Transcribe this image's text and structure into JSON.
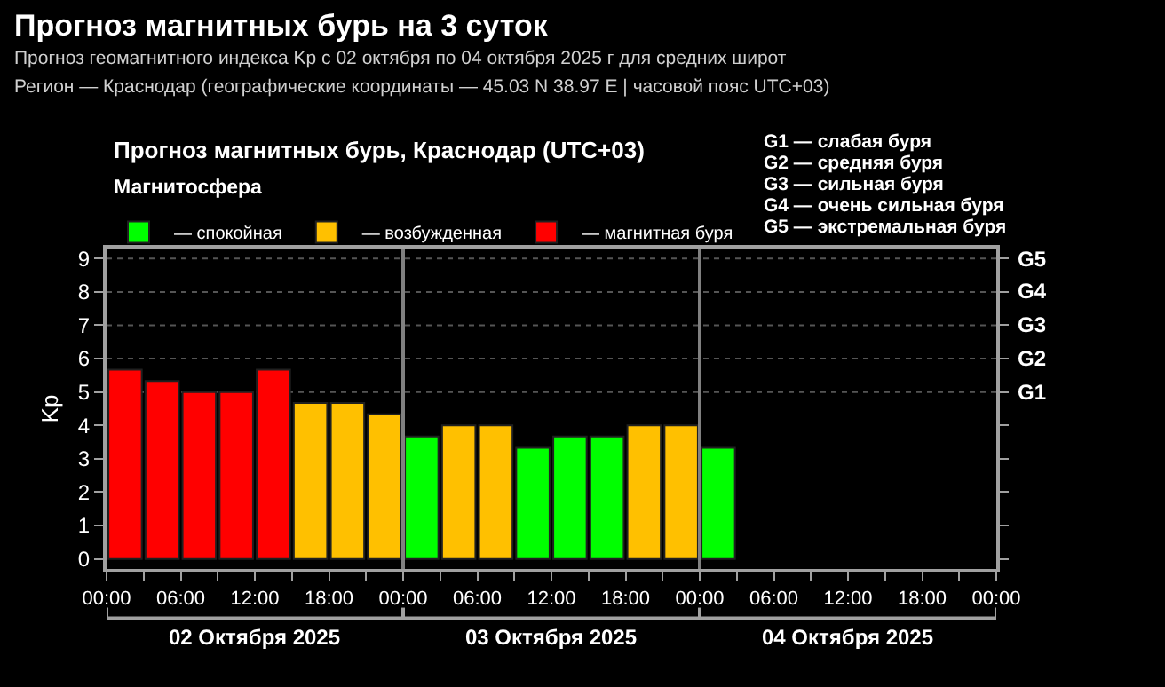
{
  "chart_data": {
    "type": "bar",
    "title": "Прогноз магнитных бурь на 3 суток",
    "subtitle": "Прогноз геомагнитного индекса Kp с 02 октября по 04 октября 2025 г для средних широт\nРегион — Краснодар (географические координаты — 45.03 N 38.97 E | часовой пояс UTC+03)",
    "annotations": [
      "Прогноз магнитных бурь, Краснодар (UTC+03)",
      "G1 — слабая буря",
      "G2 — средняя буря",
      "G3 — сильная буря",
      "G4 — очень сильная буря",
      "G5 — экстремальная буря",
      "02 Октября 2025",
      "03 Октября 2025",
      "04 Октября 2025"
    ],
    "ylabel": "Kp",
    "legend_title": "Магнитосфера",
    "legend": "top left",
    "x": [
      "2025-10-02T01:30",
      "2025-10-02T04:30",
      "2025-10-02T07:30",
      "2025-10-02T10:30",
      "2025-10-02T13:30",
      "2025-10-02T16:30",
      "2025-10-02T19:30",
      "2025-10-02T22:30",
      "2025-10-03T01:30",
      "2025-10-03T04:30",
      "2025-10-03T07:30",
      "2025-10-03T10:30",
      "2025-10-03T13:30",
      "2025-10-03T16:30",
      "2025-10-03T19:30",
      "2025-10-03T22:30",
      "2025-10-04T01:30"
    ],
    "series": [
      {
        "name": "— спокойная",
        "color": "#00ff00",
        "values": [
          null,
          null,
          null,
          null,
          null,
          null,
          null,
          null,
          3.67,
          null,
          null,
          3.33,
          3.67,
          3.67,
          null,
          null,
          3.33
        ]
      },
      {
        "name": "— возбужденная",
        "color": "#ffc000",
        "values": [
          null,
          null,
          null,
          null,
          null,
          4.67,
          4.67,
          4.33,
          null,
          4,
          4,
          null,
          null,
          null,
          4,
          4,
          null
        ]
      },
      {
        "name": "— магнитная буря",
        "color": "#ff0000",
        "values": [
          5.67,
          5.33,
          5,
          5,
          5.67,
          null,
          null,
          null,
          null,
          null,
          null,
          null,
          null,
          null,
          null,
          null,
          null
        ]
      }
    ],
    "xlim": [
      "2025-10-02T00:00",
      "2025-10-05T00:00"
    ],
    "xticks": [
      {
        "value": "2025-10-02T00:00",
        "label": "00:00"
      },
      {
        "value": "2025-10-02T03:00",
        "label": null
      },
      {
        "value": "2025-10-02T06:00",
        "label": "06:00"
      },
      {
        "value": "2025-10-02T09:00",
        "label": null
      },
      {
        "value": "2025-10-02T12:00",
        "label": "12:00"
      },
      {
        "value": "2025-10-02T15:00",
        "label": null
      },
      {
        "value": "2025-10-02T18:00",
        "label": "18:00"
      },
      {
        "value": "2025-10-02T21:00",
        "label": null
      },
      {
        "value": "2025-10-03T00:00",
        "label": "00:00"
      },
      {
        "value": "2025-10-03T03:00",
        "label": null
      },
      {
        "value": "2025-10-03T06:00",
        "label": "06:00"
      },
      {
        "value": "2025-10-03T09:00",
        "label": null
      },
      {
        "value": "2025-10-03T12:00",
        "label": "12:00"
      },
      {
        "value": "2025-10-03T15:00",
        "label": null
      },
      {
        "value": "2025-10-03T18:00",
        "label": "18:00"
      },
      {
        "value": "2025-10-03T21:00",
        "label": null
      },
      {
        "value": "2025-10-04T00:00",
        "label": "00:00"
      },
      {
        "value": "2025-10-04T03:00",
        "label": null
      },
      {
        "value": "2025-10-04T06:00",
        "label": "06:00"
      },
      {
        "value": "2025-10-04T09:00",
        "label": null
      },
      {
        "value": "2025-10-04T12:00",
        "label": "12:00"
      },
      {
        "value": "2025-10-04T15:00",
        "label": null
      },
      {
        "value": "2025-10-04T18:00",
        "label": "18:00"
      },
      {
        "value": "2025-10-04T21:00",
        "label": null
      },
      {
        "value": "2025-10-05T00:00",
        "label": "00:00"
      }
    ],
    "ylim": [
      -0.3,
      9.3
    ],
    "yticks": [
      0,
      1,
      2,
      3,
      4,
      5,
      6,
      7,
      8,
      9
    ],
    "ref_lines": [
      {
        "axis": "x",
        "value": "2025-10-03T00:00",
        "label": null,
        "color": "#808080"
      },
      {
        "axis": "x",
        "value": "2025-10-04T00:00",
        "label": null,
        "color": "#808080"
      },
      {
        "axis": "y",
        "value": 5,
        "label": "G1",
        "color": "#555555",
        "line_style": "dotted"
      },
      {
        "axis": "y",
        "value": 6,
        "label": "G2",
        "color": "#555555",
        "line_style": "dotted"
      },
      {
        "axis": "y",
        "value": 7,
        "label": "G3",
        "color": "#555555",
        "line_style": "dotted"
      },
      {
        "axis": "y",
        "value": 8,
        "label": "G4",
        "color": "#555555",
        "line_style": "dotted"
      },
      {
        "axis": "y",
        "value": 9,
        "label": "G5",
        "color": "#555555",
        "line_style": "dotted"
      }
    ]
  }
}
